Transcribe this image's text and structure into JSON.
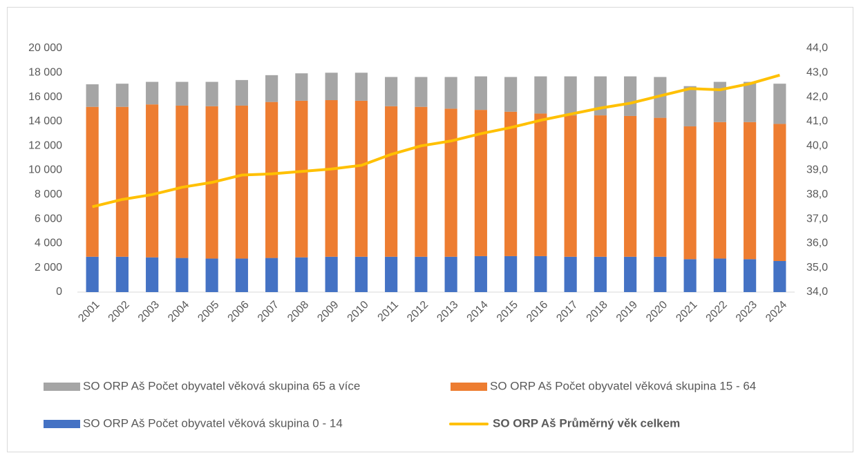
{
  "chart_data": {
    "type": "bar",
    "stacked": true,
    "categories": [
      "2001",
      "2002",
      "2003",
      "2004",
      "2005",
      "2006",
      "2007",
      "2008",
      "2009",
      "2010",
      "2011",
      "2012",
      "2013",
      "2014",
      "2015",
      "2016",
      "2017",
      "2018",
      "2019",
      "2020",
      "2021",
      "2022",
      "2023",
      "2024"
    ],
    "series": [
      {
        "name": "SO ORP Aš Počet obyvatel věková skupina 0 - 14",
        "type": "bar",
        "color": "#4472c4",
        "values": [
          2900,
          2900,
          2850,
          2800,
          2750,
          2750,
          2800,
          2850,
          2900,
          2900,
          2900,
          2900,
          2900,
          2950,
          2950,
          2950,
          2900,
          2900,
          2900,
          2900,
          2700,
          2750,
          2700,
          2550
        ]
      },
      {
        "name": "SO ORP Aš Počet obyvatel věková skupina 15 - 64",
        "type": "bar",
        "color": "#ed7d31",
        "values": [
          12300,
          12300,
          12550,
          12500,
          12500,
          12550,
          12800,
          12850,
          12850,
          12800,
          12350,
          12300,
          12150,
          12000,
          11850,
          11700,
          11600,
          11600,
          11550,
          11400,
          10900,
          11200,
          11250,
          11250
        ]
      },
      {
        "name": "SO ORP Aš Počet obyvatel věková skupina 65 a více",
        "type": "bar",
        "color": "#a5a5a5",
        "values": [
          1850,
          1900,
          1850,
          1950,
          2000,
          2100,
          2200,
          2250,
          2250,
          2300,
          2400,
          2450,
          2600,
          2750,
          2850,
          3050,
          3200,
          3200,
          3250,
          3350,
          3300,
          3300,
          3300,
          3300
        ]
      },
      {
        "name": "SO ORP Aš Průměrný věk celkem",
        "type": "line",
        "axis": "y2",
        "color": "#ffc000",
        "values": [
          37.5,
          37.8,
          38.0,
          38.3,
          38.5,
          38.8,
          38.85,
          38.95,
          39.05,
          39.2,
          39.65,
          40.0,
          40.2,
          40.5,
          40.75,
          41.05,
          41.3,
          41.55,
          41.75,
          42.05,
          42.35,
          42.3,
          42.55,
          42.9
        ]
      }
    ],
    "ylim": [
      0,
      20000
    ],
    "yticks": [
      0,
      {
        "value": 2000,
        "label": "2 000"
      },
      {
        "value": 4000,
        "label": "4 000"
      },
      {
        "value": 6000,
        "label": "6 000"
      },
      {
        "value": 8000,
        "label": "8 000"
      },
      {
        "value": 10000,
        "label": "10 000"
      },
      {
        "value": 12000,
        "label": "12 000"
      },
      {
        "value": 14000,
        "label": "14 000"
      },
      {
        "value": 16000,
        "label": "16 000"
      },
      {
        "value": 18000,
        "label": "18 000"
      },
      {
        "value": 20000,
        "label": "20 000"
      }
    ],
    "y2lim": [
      34,
      44
    ],
    "y2ticks": [
      {
        "value": 34,
        "label": "34,0"
      },
      {
        "value": 35,
        "label": "35,0"
      },
      {
        "value": 36,
        "label": "36,0"
      },
      {
        "value": 37,
        "label": "37,0"
      },
      {
        "value": 38,
        "label": "38,0"
      },
      {
        "value": 39,
        "label": "39,0"
      },
      {
        "value": 40,
        "label": "40,0"
      },
      {
        "value": 41,
        "label": "41,0"
      },
      {
        "value": 42,
        "label": "42,0"
      },
      {
        "value": 43,
        "label": "43,0"
      },
      {
        "value": 44,
        "label": "44,0"
      }
    ],
    "legend": "bottom"
  }
}
